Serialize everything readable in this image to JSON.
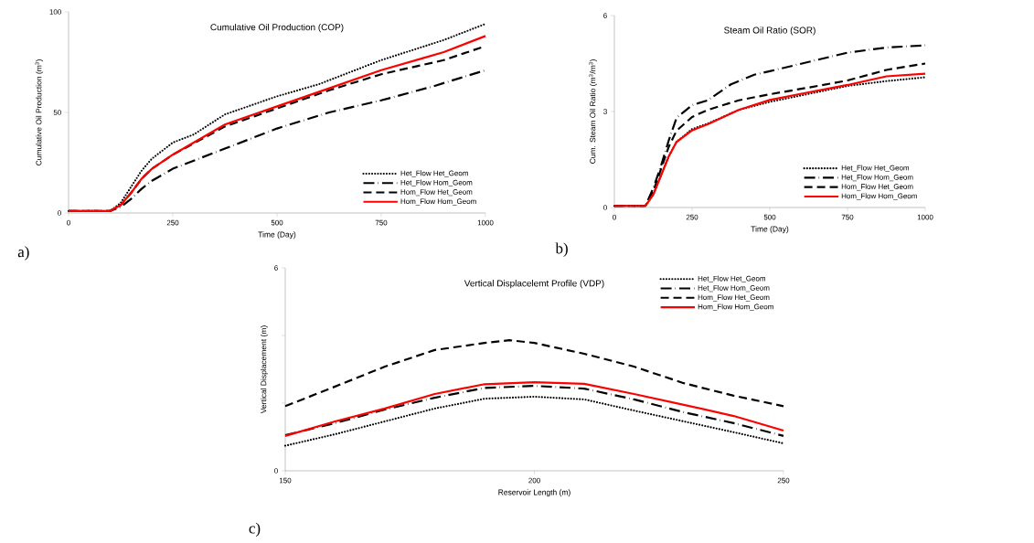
{
  "chart_data": [
    {
      "type": "line",
      "title": "Cumulative Oil Production (COP)",
      "xlabel": "Time (Day)",
      "ylabel": "Cumulative Oil Production (m$^{3}$)",
      "annotations": [
        "a)"
      ],
      "xlim": [
        0,
        1000
      ],
      "ylim": [
        0,
        100
      ],
      "xticks": [
        0,
        250,
        500,
        750,
        1000
      ],
      "yticks": [
        0,
        50,
        100
      ],
      "grid": false,
      "legend": "bottom right",
      "series": [
        {
          "name": "Het_Flow Het_Geom",
          "color": "#000000",
          "line_style": "dotted",
          "x": [
            0,
            100,
            125,
            150,
            175,
            200,
            250,
            300,
            375,
            500,
            600,
            750,
            900,
            1000
          ],
          "values": [
            1,
            1,
            5,
            13,
            21,
            27,
            35,
            39,
            49,
            58,
            64,
            76,
            86,
            94
          ]
        },
        {
          "name": "Het_Flow Hom_Geom",
          "color": "#000000",
          "line_style": "dashdot",
          "x": [
            0,
            100,
            125,
            150,
            175,
            200,
            250,
            375,
            500,
            625,
            750,
            875,
            1000
          ],
          "values": [
            1,
            1,
            3,
            7,
            12,
            16,
            22,
            32,
            42,
            50,
            56,
            63,
            71
          ]
        },
        {
          "name": "Hom_Flow Het_Geom",
          "color": "#000000",
          "line_style": "dashed",
          "x": [
            0,
            100,
            125,
            150,
            175,
            200,
            250,
            375,
            500,
            625,
            750,
            900,
            1000
          ],
          "values": [
            1,
            1,
            4,
            10,
            17,
            22,
            29,
            43,
            52,
            61,
            69,
            76,
            83
          ]
        },
        {
          "name": "Hom_Flow Hom_Geom",
          "color": "#ff0000",
          "line_style": "solid",
          "x": [
            0,
            100,
            125,
            150,
            175,
            200,
            250,
            300,
            375,
            500,
            625,
            750,
            850,
            900,
            1000
          ],
          "values": [
            1,
            1,
            4,
            10,
            17,
            22,
            29,
            35,
            44,
            53,
            62,
            71,
            77,
            80,
            88
          ]
        }
      ]
    },
    {
      "type": "line",
      "title": "Steam Oil Ratio (SOR)",
      "xlabel": "Time (Day)",
      "ylabel": "Cum. Steam Oil Ratio (m$^{3}$/m$^{3}$)",
      "annotations": [
        "b)"
      ],
      "xlim": [
        0,
        1000
      ],
      "ylim": [
        0,
        6
      ],
      "xticks": [
        0,
        250,
        500,
        750,
        1000
      ],
      "yticks": [
        0,
        3,
        6
      ],
      "grid": false,
      "legend": "bottom right",
      "series": [
        {
          "name": "Het_Flow Het_Geom",
          "color": "#000000",
          "line_style": "dotted",
          "x": [
            0,
            100,
            125,
            150,
            175,
            200,
            250,
            300,
            400,
            500,
            625,
            750,
            875,
            1000
          ],
          "values": [
            0.05,
            0.05,
            0.4,
            1.0,
            1.6,
            2.05,
            2.45,
            2.62,
            3.05,
            3.3,
            3.55,
            3.8,
            3.95,
            4.07
          ]
        },
        {
          "name": "Het_Flow Hom_Geom",
          "color": "#000000",
          "line_style": "dashdot",
          "x": [
            0,
            100,
            125,
            150,
            175,
            200,
            250,
            300,
            375,
            450,
            500,
            625,
            750,
            875,
            1000
          ],
          "values": [
            0.05,
            0.05,
            0.6,
            1.3,
            2.1,
            2.8,
            3.2,
            3.35,
            3.85,
            4.15,
            4.26,
            4.55,
            4.84,
            5.0,
            5.07
          ]
        },
        {
          "name": "Hom_Flow Het_Geom",
          "color": "#000000",
          "line_style": "dashed",
          "x": [
            0,
            100,
            125,
            150,
            175,
            200,
            250,
            300,
            400,
            500,
            625,
            750,
            875,
            1000
          ],
          "values": [
            0.05,
            0.05,
            0.5,
            1.2,
            1.9,
            2.4,
            2.83,
            3.05,
            3.35,
            3.54,
            3.75,
            3.97,
            4.3,
            4.5
          ]
        },
        {
          "name": "Hom_Flow Hom_Geom",
          "color": "#ff0000",
          "line_style": "solid",
          "x": [
            0,
            100,
            125,
            150,
            175,
            200,
            250,
            300,
            400,
            500,
            625,
            750,
            875,
            1000
          ],
          "values": [
            0.05,
            0.05,
            0.4,
            1.0,
            1.6,
            2.05,
            2.41,
            2.6,
            3.05,
            3.36,
            3.6,
            3.83,
            4.1,
            4.18
          ]
        }
      ]
    },
    {
      "type": "line",
      "title": "Vertical Displacelemt Profile (VDP)",
      "xlabel": "Reservoir Length (m)",
      "ylabel": "Vertical Displacement (m)",
      "annotations": [
        "c)"
      ],
      "xlim": [
        150,
        250
      ],
      "ylim": [
        0,
        6
      ],
      "xticks": [
        150,
        200,
        250
      ],
      "yticks": [
        0,
        {
          "value": 2,
          "label": null
        },
        {
          "value": 4,
          "label": null
        },
        6
      ],
      "grid": false,
      "legend": "top right",
      "series": [
        {
          "name": "Het_Flow Het_Geom",
          "color": "#000000",
          "line_style": "dotted",
          "x": [
            150,
            160,
            170,
            180,
            190,
            200,
            210,
            220,
            230,
            240,
            250
          ],
          "values": [
            0.74,
            1.08,
            1.46,
            1.84,
            2.13,
            2.19,
            2.11,
            1.78,
            1.46,
            1.14,
            0.81
          ]
        },
        {
          "name": "Het_Flow Hom_Geom",
          "color": "#000000",
          "line_style": "dashdot",
          "x": [
            150,
            160,
            170,
            180,
            190,
            200,
            210,
            220,
            230,
            240,
            250
          ],
          "values": [
            1.05,
            1.41,
            1.81,
            2.16,
            2.45,
            2.51,
            2.43,
            2.11,
            1.73,
            1.41,
            1.03
          ]
        },
        {
          "name": "Hom_Flow Het_Geom",
          "color": "#000000",
          "line_style": "dashed",
          "x": [
            150,
            160,
            170,
            180,
            190,
            195,
            200,
            210,
            220,
            230,
            240,
            250
          ],
          "values": [
            1.91,
            2.49,
            3.08,
            3.57,
            3.78,
            3.86,
            3.78,
            3.46,
            3.08,
            2.59,
            2.22,
            1.91
          ]
        },
        {
          "name": "Hom_Flow Hom_Geom",
          "color": "#ff0000",
          "line_style": "solid",
          "x": [
            150,
            160,
            170,
            180,
            190,
            200,
            210,
            220,
            230,
            240,
            250
          ],
          "values": [
            1.03,
            1.46,
            1.84,
            2.27,
            2.56,
            2.62,
            2.57,
            2.27,
            1.95,
            1.62,
            1.19
          ]
        }
      ]
    }
  ]
}
